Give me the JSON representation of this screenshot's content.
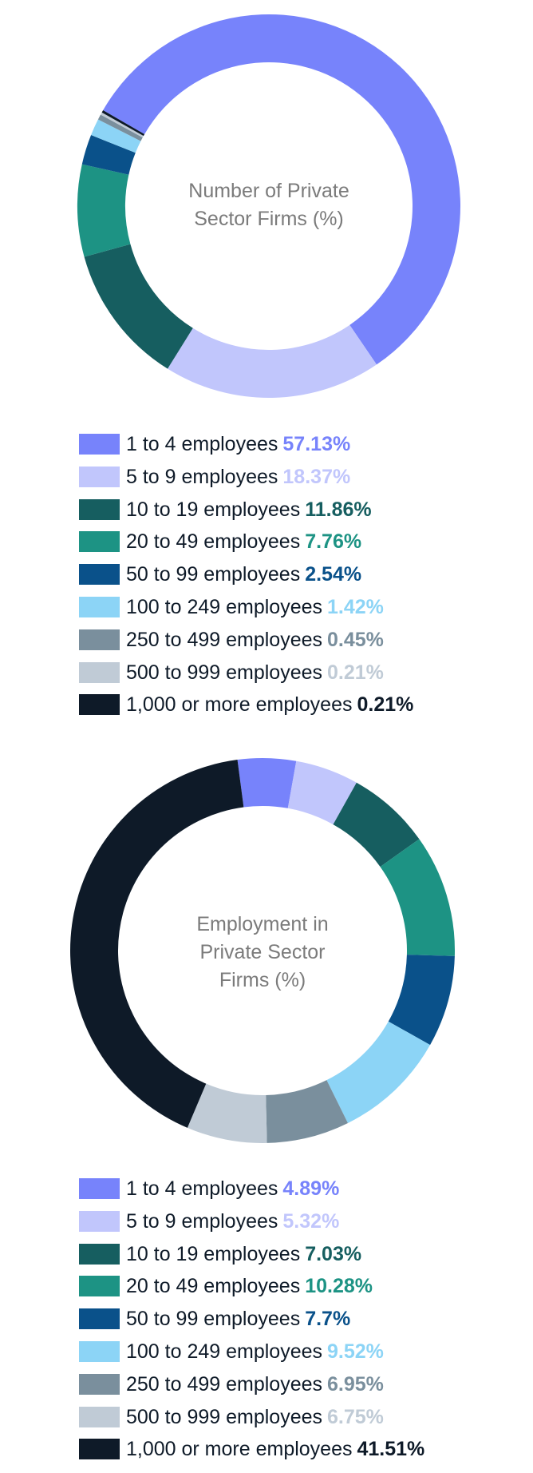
{
  "chart_data": [
    {
      "type": "pie",
      "title": "Number of Private Sector Firms (%)",
      "title_lines": [
        "Number of Private",
        "Sector Firms (%)"
      ],
      "categories": [
        "1 to 4 employees",
        "5 to 9 employees",
        "10 to 19 employees",
        "20 to 49 employees",
        "50 to 99 employees",
        "100 to 249 employees",
        "250 to 499 employees",
        "500 to 999 employees",
        "1,000 or more employees"
      ],
      "values": [
        57.13,
        18.37,
        11.86,
        7.76,
        2.54,
        1.42,
        0.45,
        0.21,
        0.21
      ],
      "labels": [
        "57.13%",
        "18.37%",
        "11.86%",
        "7.76%",
        "2.54%",
        "1.42%",
        "0.45%",
        "0.21%",
        "0.21%"
      ],
      "colors": [
        "#7783fb",
        "#c1c6fc",
        "#165e60",
        "#1d9384",
        "#0a518a",
        "#8cd4f6",
        "#7a8f9d",
        "#c0cbd6",
        "#0e1a28"
      ],
      "start_angle_deg": -60,
      "legend_position": "bottom"
    },
    {
      "type": "pie",
      "title": "Employment in Private Sector Firms (%)",
      "title_lines": [
        "Employment in",
        "Private Sector",
        "Firms (%)"
      ],
      "categories": [
        "1 to 4 employees",
        "5 to 9 employees",
        "10 to 19 employees",
        "20 to 49 employees",
        "50 to 99 employees",
        "100 to 249 employees",
        "250 to 499 employees",
        "500 to 999 employees",
        "1,000 or more employees"
      ],
      "values": [
        4.89,
        5.32,
        7.03,
        10.28,
        7.7,
        9.52,
        6.95,
        6.75,
        41.51
      ],
      "labels": [
        "4.89%",
        "5.32%",
        "7.03%",
        "10.28%",
        "7.7%",
        "9.52%",
        "6.95%",
        "6.75%",
        "41.51%"
      ],
      "colors": [
        "#7783fb",
        "#c1c6fc",
        "#165e60",
        "#1d9384",
        "#0a518a",
        "#8cd4f6",
        "#7a8f9d",
        "#c0cbd6",
        "#0e1a28"
      ],
      "start_angle_deg": -7.5,
      "legend_position": "bottom"
    }
  ]
}
